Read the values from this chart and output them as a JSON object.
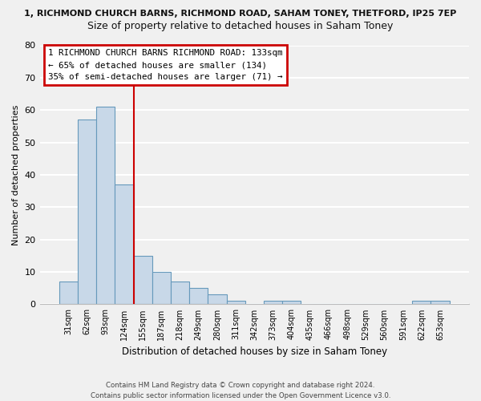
{
  "title_top": "1, RICHMOND CHURCH BARNS, RICHMOND ROAD, SAHAM TONEY, THETFORD, IP25 7EP",
  "title_main": "Size of property relative to detached houses in Saham Toney",
  "xlabel": "Distribution of detached houses by size in Saham Toney",
  "ylabel": "Number of detached properties",
  "bin_labels": [
    "31sqm",
    "62sqm",
    "93sqm",
    "124sqm",
    "155sqm",
    "187sqm",
    "218sqm",
    "249sqm",
    "280sqm",
    "311sqm",
    "342sqm",
    "373sqm",
    "404sqm",
    "435sqm",
    "466sqm",
    "498sqm",
    "529sqm",
    "560sqm",
    "591sqm",
    "622sqm",
    "653sqm"
  ],
  "bar_values": [
    7,
    57,
    61,
    37,
    15,
    10,
    7,
    5,
    3,
    1,
    0,
    1,
    1,
    0,
    0,
    0,
    0,
    0,
    0,
    1,
    1
  ],
  "bar_color": "#c8d8e8",
  "bar_edge_color": "#6699bb",
  "vline_color": "#cc0000",
  "ylim": [
    0,
    80
  ],
  "annotation_line1": "1 RICHMOND CHURCH BARNS RICHMOND ROAD: 133sqm",
  "annotation_line2": "← 65% of detached houses are smaller (134)",
  "annotation_line3": "35% of semi-detached houses are larger (71) →",
  "footer_line1": "Contains HM Land Registry data © Crown copyright and database right 2024.",
  "footer_line2": "Contains public sector information licensed under the Open Government Licence v3.0.",
  "bg_color": "#f0f0f0",
  "grid_color": "#ffffff"
}
